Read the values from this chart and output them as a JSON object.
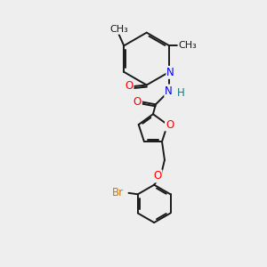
{
  "background_color": "#eeeeee",
  "bond_color": "#1a1a1a",
  "atom_colors": {
    "O": "#ff0000",
    "N": "#0000ff",
    "H": "#008080",
    "Br": "#cc7700"
  },
  "font_size": 8.5,
  "line_width": 1.4
}
